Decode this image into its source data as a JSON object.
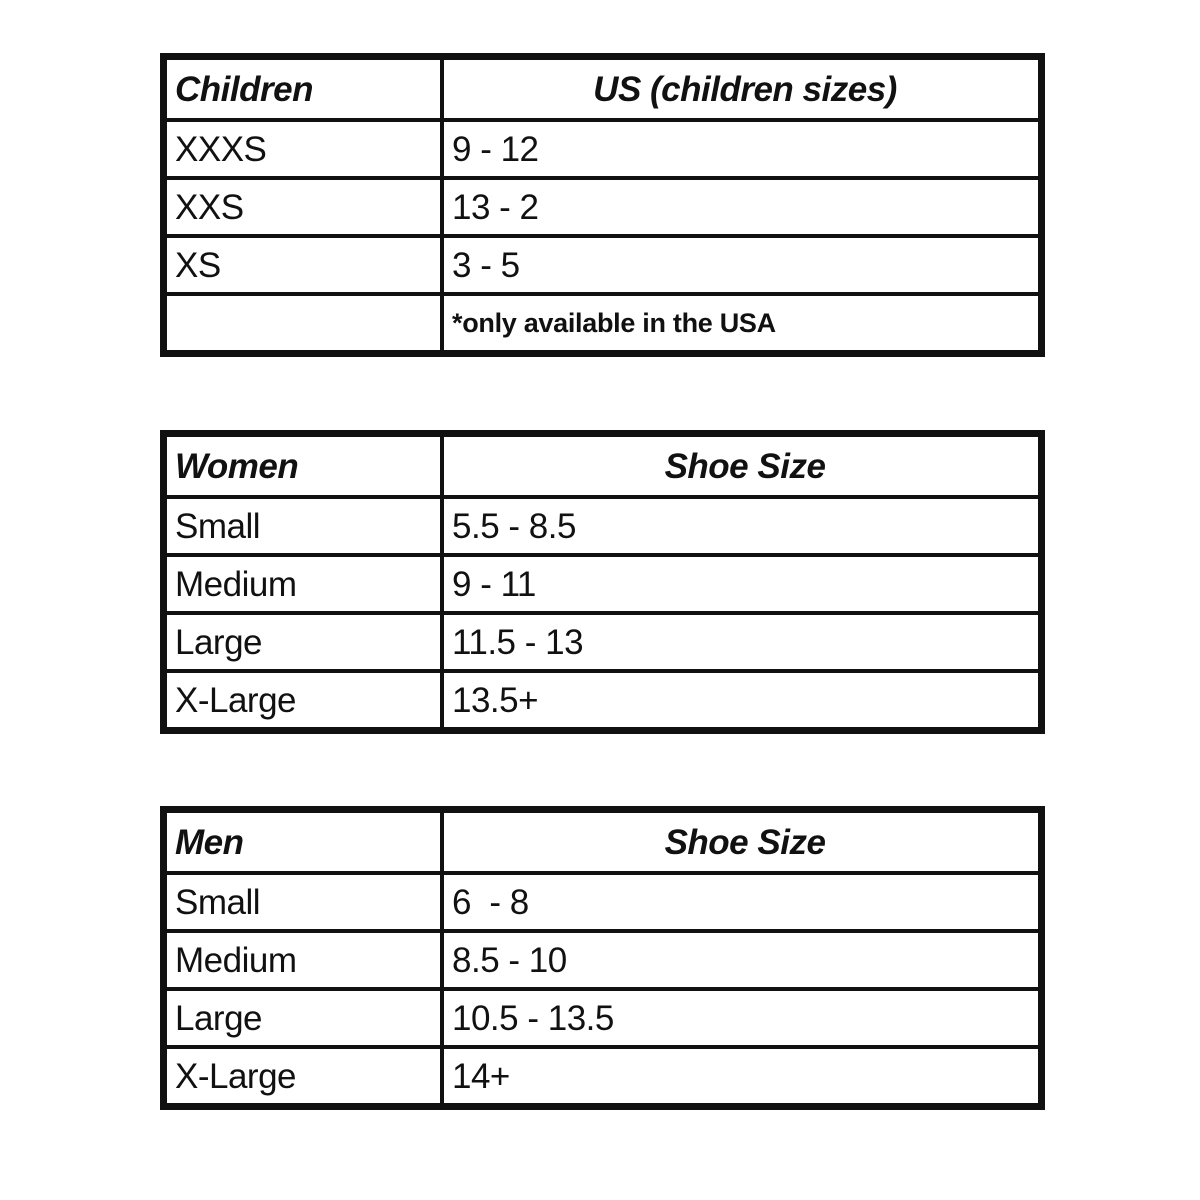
{
  "tables": [
    {
      "header": [
        "Children",
        "US (children sizes)"
      ],
      "rows": [
        [
          "XXXS",
          "9 - 12"
        ],
        [
          "XXS",
          "13 - 2"
        ],
        [
          "XS",
          "3 - 5"
        ],
        [
          "",
          "*only available in the USA"
        ]
      ]
    },
    {
      "header": [
        "Women",
        "Shoe Size"
      ],
      "rows": [
        [
          "Small",
          "5.5 - 8.5"
        ],
        [
          "Medium",
          "9 - 11"
        ],
        [
          "Large",
          "11.5 - 13"
        ],
        [
          "X-Large",
          "13.5+"
        ]
      ]
    },
    {
      "header": [
        "Men",
        "Shoe Size"
      ],
      "rows": [
        [
          "Small",
          "6  - 8"
        ],
        [
          "Medium",
          "8.5 - 10"
        ],
        [
          "Large",
          "10.5 - 13.5"
        ],
        [
          "X-Large",
          "14+"
        ]
      ]
    }
  ]
}
